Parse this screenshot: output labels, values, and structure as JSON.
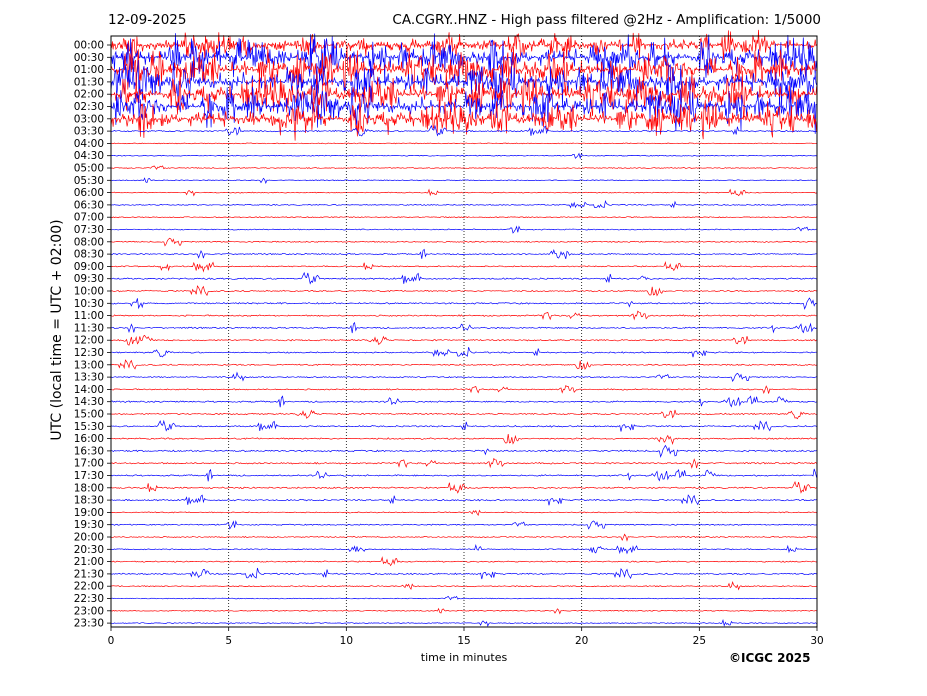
{
  "header": {
    "date": "12-09-2025",
    "title": "CA.CGRY..HNZ - High pass filtered @2Hz - Amplification: 1/5000"
  },
  "footer": {
    "copyright": "©ICGC 2025"
  },
  "chart_data": {
    "type": "line",
    "title": "CA.CGRY..HNZ - High pass filtered @2Hz - Amplification: 1/5000",
    "xlabel": "time in minutes",
    "ylabel": "UTC (local time = UTC + 02:00)",
    "xlim": [
      0,
      30
    ],
    "x_ticks": [
      "0",
      "5",
      "10",
      "15",
      "20",
      "25",
      "30"
    ],
    "y_ticks": [
      "00:00",
      "00:30",
      "01:00",
      "01:30",
      "02:00",
      "02:30",
      "03:00",
      "03:30",
      "04:00",
      "04:30",
      "05:00",
      "05:30",
      "06:00",
      "06:30",
      "07:00",
      "07:30",
      "08:00",
      "08:30",
      "09:00",
      "09:30",
      "10:00",
      "10:30",
      "11:00",
      "11:30",
      "12:00",
      "12:30",
      "13:00",
      "13:30",
      "14:00",
      "14:30",
      "15:00",
      "15:30",
      "16:00",
      "16:30",
      "17:00",
      "17:30",
      "18:00",
      "18:30",
      "19:00",
      "19:30",
      "20:00",
      "20:30",
      "21:00",
      "21:30",
      "22:00",
      "22:30",
      "23:00",
      "23:30"
    ],
    "vertical_grid": "dotted",
    "colors": {
      "even_trace": "#ff0000",
      "odd_trace": "#0000ff",
      "axes": "#000000"
    },
    "activity": [
      3.5,
      6,
      6,
      6,
      6,
      6,
      5,
      1.2,
      0.3,
      0.2,
      0.4,
      0.2,
      0.4,
      0.5,
      0.5,
      0.6,
      0.7,
      0.9,
      0.9,
      1.4,
      1.2,
      1.4,
      1.2,
      1.1,
      1.1,
      1.0,
      1.1,
      0.8,
      0.9,
      1.2,
      1.1,
      1.2,
      1.4,
      1.5,
      1.3,
      1.3,
      1.4,
      1.2,
      0.6,
      0.8,
      0.6,
      0.6,
      0.9,
      1.2,
      0.7,
      0.25,
      0.2,
      0.4
    ]
  }
}
